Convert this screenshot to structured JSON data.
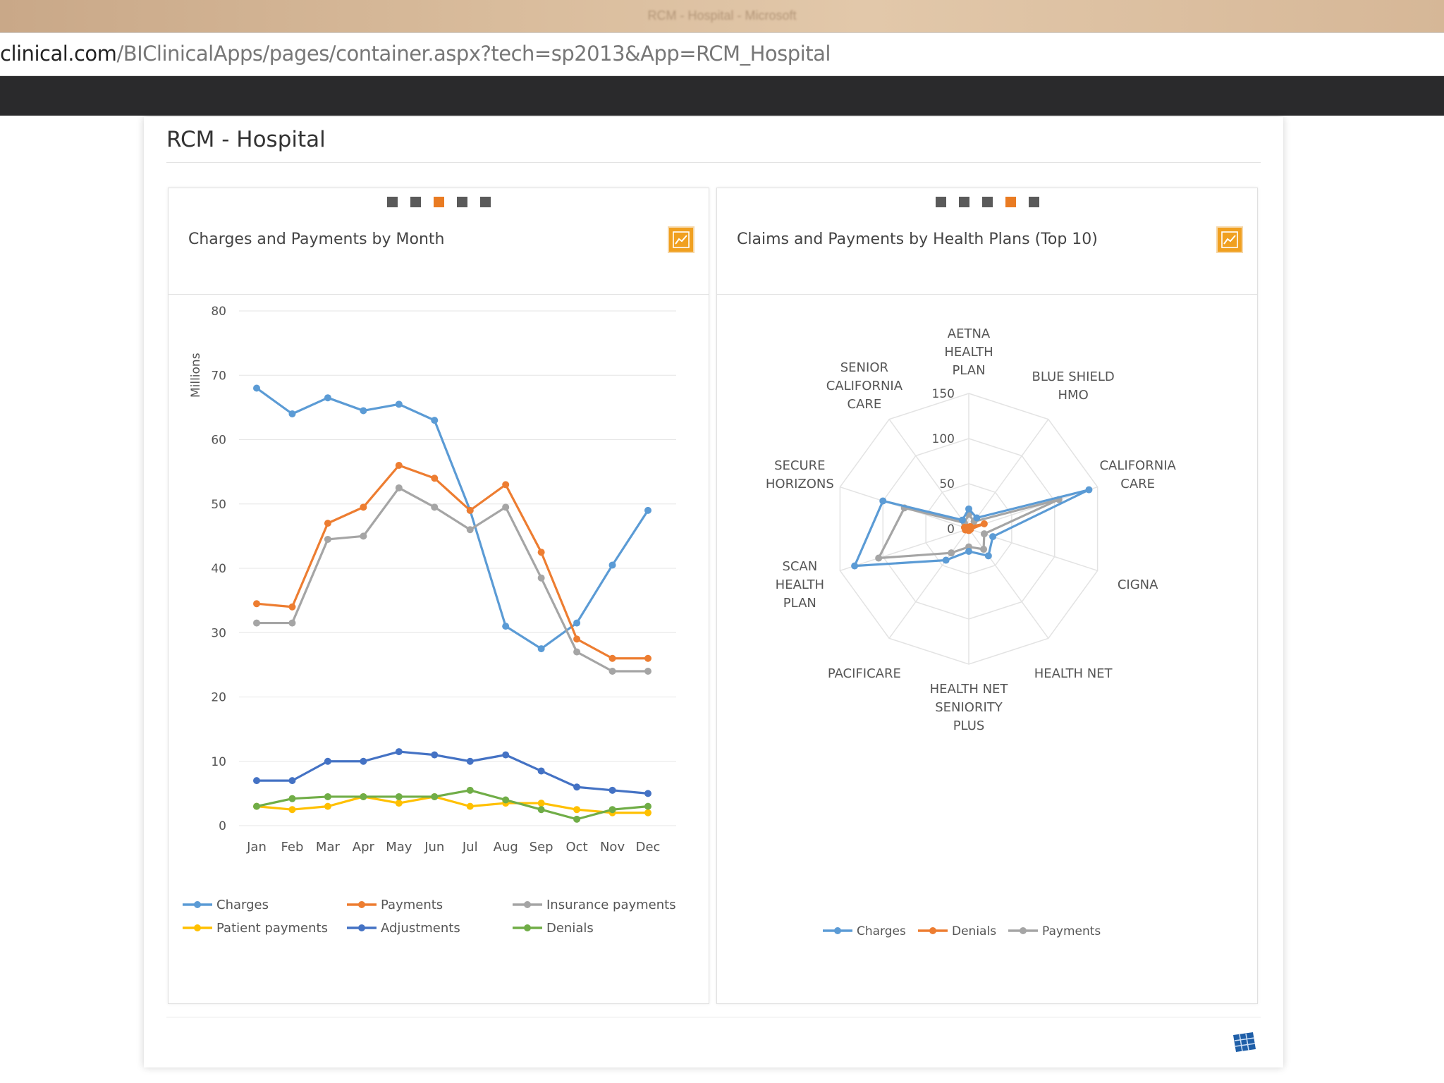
{
  "browser": {
    "window_title": "RCM - Hospital - Microsoft",
    "url_domain": "clinical.com",
    "url_path": "/BIClinicalApps/pages/container.aspx?tech=sp2013&App=RCM_Hospital"
  },
  "page": {
    "title": "RCM - Hospital",
    "prev_arrow": "‹",
    "next_arrow": "›"
  },
  "left_panel": {
    "title": "Charges and Payments by Month",
    "dots_total": 5,
    "dots_active": 3,
    "button_icon": "line-chart-icon"
  },
  "right_panel": {
    "title": "Claims and Payments by Health Plans (Top 10)",
    "dots_total": 5,
    "dots_active": 4,
    "button_icon": "line-chart-icon"
  },
  "footer": {
    "icon": "grid-icon"
  },
  "colors": {
    "accent": "#e97b22",
    "nav": "#2a2a2c"
  },
  "chart_data": [
    {
      "type": "line",
      "title": "Charges and Payments by Month",
      "ylabel": "Millions",
      "ylim": [
        0,
        80
      ],
      "yticks": [
        0,
        10,
        20,
        30,
        40,
        50,
        60,
        70,
        80
      ],
      "grid": true,
      "legend_position": "bottom",
      "categories": [
        "Jan",
        "Feb",
        "Mar",
        "Apr",
        "May",
        "Jun",
        "Jul",
        "Aug",
        "Sep",
        "Oct",
        "Nov",
        "Dec"
      ],
      "series": [
        {
          "name": "Charges",
          "color": "#5b9bd5",
          "values": [
            68,
            64,
            66.5,
            64.5,
            65.5,
            63,
            49,
            31,
            27.5,
            31.5,
            40.5,
            49
          ]
        },
        {
          "name": "Payments",
          "color": "#ed7d31",
          "values": [
            34.5,
            34,
            47,
            49.5,
            56,
            54,
            49,
            53,
            42.5,
            29,
            26,
            26
          ]
        },
        {
          "name": "Insurance payments",
          "color": "#a5a5a5",
          "values": [
            31.5,
            31.5,
            44.5,
            45,
            52.5,
            49.5,
            46,
            49.5,
            38.5,
            27,
            24,
            24
          ]
        },
        {
          "name": "Patient payments",
          "color": "#ffc000",
          "values": [
            3,
            2.5,
            3,
            4.5,
            3.5,
            4.5,
            3,
            3.5,
            3.5,
            2.5,
            2,
            2
          ]
        },
        {
          "name": "Adjustments",
          "color": "#4472c4",
          "values": [
            7,
            7,
            10,
            10,
            11.5,
            11,
            10,
            11,
            8.5,
            6,
            5.5,
            5
          ]
        },
        {
          "name": "Denials",
          "color": "#70ad47",
          "values": [
            3,
            4.2,
            4.5,
            4.5,
            4.5,
            4.5,
            5.5,
            4,
            2.5,
            1,
            2.5,
            3
          ]
        }
      ]
    },
    {
      "type": "radar",
      "title": "Claims and Payments by Health Plans (Top 10)",
      "rlim": [
        0,
        150
      ],
      "rticks": [
        0,
        50,
        100,
        150
      ],
      "legend_position": "bottom",
      "categories": [
        "AETNA HEALTH PLAN",
        "BLUE SHIELD HMO",
        "CALIFORNIA CARE",
        "CIGNA",
        "HEALTH NET",
        "HEALTH NET SENIORITY PLUS",
        "PACIFICARE",
        "SCAN HEALTH PLAN",
        "SECURE HORIZONS",
        "SENIOR CALIFORNIA CARE"
      ],
      "category_lines": [
        [
          "AETNA",
          "HEALTH",
          "PLAN"
        ],
        [
          "BLUE SHIELD",
          "HMO"
        ],
        [
          "CALIFORNIA",
          "CARE"
        ],
        [
          "CIGNA"
        ],
        [
          "HEALTH NET"
        ],
        [
          "HEALTH NET",
          "SENIORITY",
          "PLUS"
        ],
        [
          "PACIFICARE"
        ],
        [
          "SCAN",
          "HEALTH",
          "PLAN"
        ],
        [
          "SECURE",
          "HORIZONS"
        ],
        [
          "SENIOR",
          "CALIFORNIA",
          "CARE"
        ]
      ],
      "series": [
        {
          "name": "Charges",
          "color": "#5b9bd5",
          "values": [
            22,
            15,
            140,
            28,
            37,
            25,
            43,
            133,
            100,
            12
          ]
        },
        {
          "name": "Denials",
          "color": "#ed7d31",
          "values": [
            2,
            3,
            18,
            2,
            1,
            2,
            1,
            4,
            5,
            2
          ]
        },
        {
          "name": "Payments",
          "color": "#a5a5a5",
          "values": [
            16,
            10,
            105,
            18,
            28,
            20,
            33,
            105,
            75,
            8
          ]
        }
      ]
    }
  ]
}
